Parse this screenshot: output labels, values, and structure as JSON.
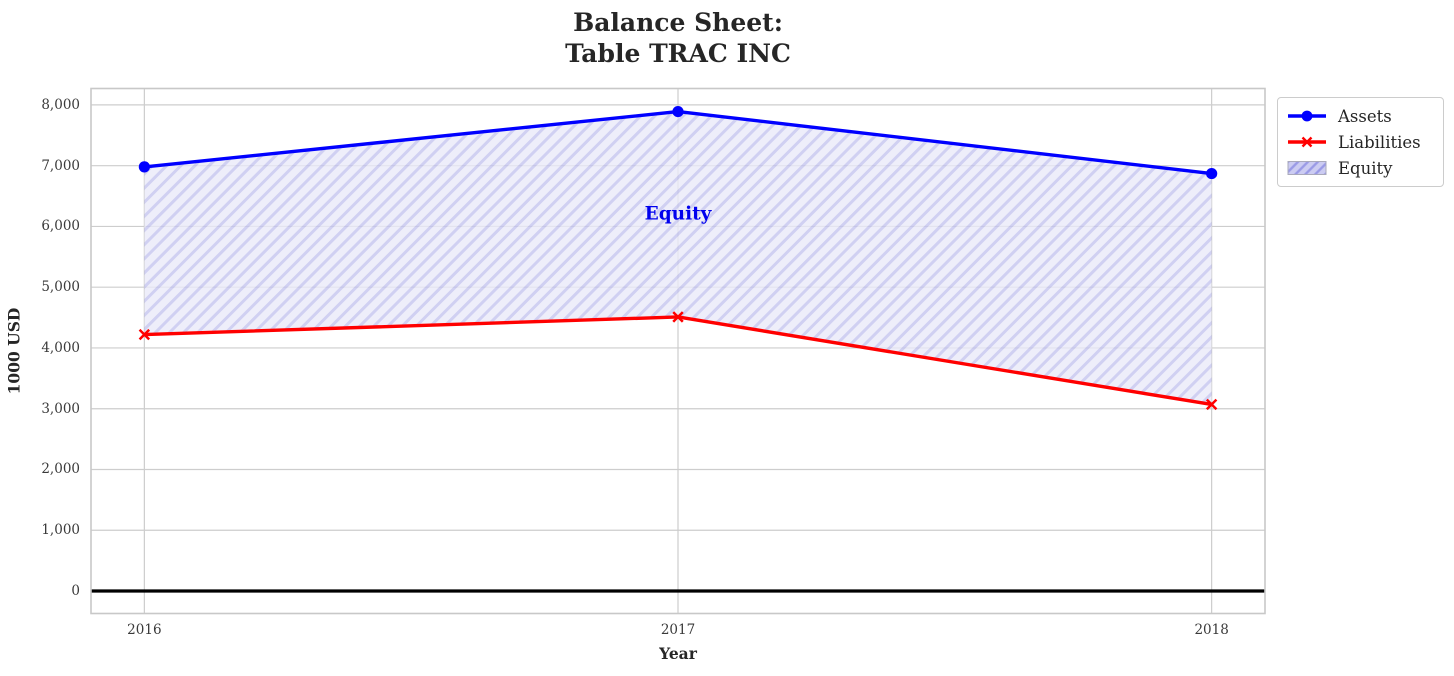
{
  "chart_data": {
    "type": "line",
    "title": "Balance Sheet:\nTable TRAC INC",
    "xlabel": "Year",
    "ylabel": "1000 USD",
    "x": [
      2016,
      2017,
      2018
    ],
    "x_tick_labels": [
      "2016",
      "2017",
      "2018"
    ],
    "y_ticks": [
      0,
      1000,
      2000,
      3000,
      4000,
      5000,
      6000,
      7000,
      8000
    ],
    "y_tick_labels": [
      "0",
      "1,000",
      "2,000",
      "3,000",
      "4,000",
      "5,000",
      "6,000",
      "7,000",
      "8,000"
    ],
    "xlim": [
      2015.9,
      2018.1
    ],
    "ylim": [
      -370,
      8270
    ],
    "grid": true,
    "legend_position": "upper-right-outside",
    "series": [
      {
        "name": "Assets",
        "color": "#0000ff",
        "marker": "circle",
        "values": [
          6980,
          7890,
          6870
        ]
      },
      {
        "name": "Liabilities",
        "color": "#ff0000",
        "marker": "x",
        "values": [
          4220,
          4510,
          3070
        ]
      }
    ],
    "equity_area": {
      "name": "Equity",
      "between": [
        "Assets",
        "Liabilities"
      ],
      "values": [
        2760,
        3380,
        3800
      ],
      "hatch_style": "diagonal",
      "fill_color": "#e9e9f8",
      "hatch_color": "#c3c3ee",
      "legend_fill_color": "#ccccf2",
      "legend_hatch_color": "#9a9ae6",
      "legend_border_color": "#aab",
      "opacity": 0.78
    },
    "annotation": {
      "text": "Equity",
      "x": 2017,
      "y": 6200,
      "color": "#0000ee"
    },
    "zero_line_color": "#000000",
    "grid_color": "#cdcdcd",
    "axes_border_color": "#c8c8c8"
  }
}
